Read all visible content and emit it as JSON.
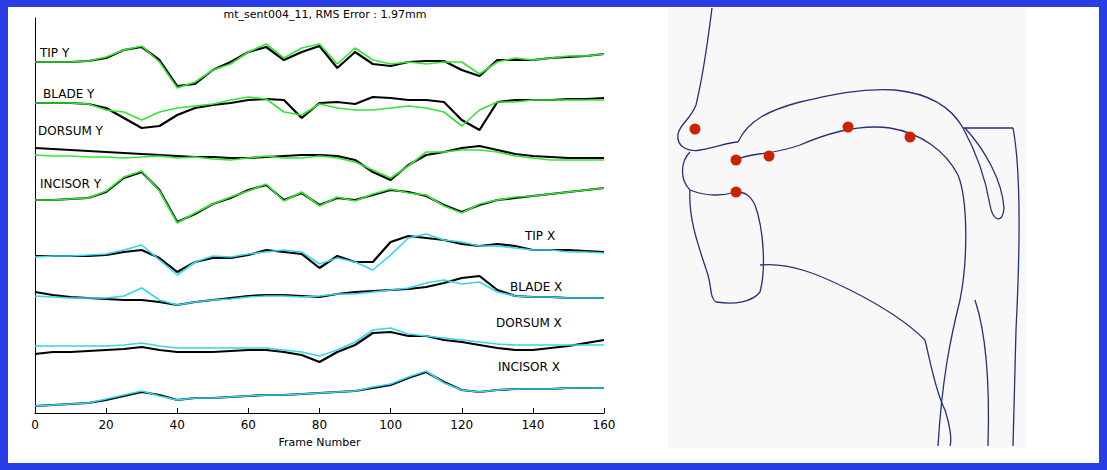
{
  "chart_data": {
    "type": "line",
    "title": "mt_sent004_11, RMS Error : 1.97mm",
    "x_label": "Frame Number",
    "x": [
      0,
      5,
      10,
      15,
      20,
      25,
      30,
      35,
      40,
      45,
      50,
      55,
      60,
      65,
      70,
      75,
      80,
      85,
      90,
      95,
      100,
      105,
      110,
      115,
      120,
      125,
      130,
      135,
      140,
      145,
      150,
      155,
      160
    ],
    "xlim": [
      0,
      160
    ],
    "xticks": [
      0,
      20,
      40,
      60,
      80,
      100,
      120,
      140,
      160
    ],
    "ylim": [
      0,
      395
    ],
    "tick_labels": "x",
    "grid": false,
    "series": [
      {
        "name": "TIP Y",
        "color": "#000000",
        "values": [
          351,
          351,
          351,
          352,
          355,
          363,
          366,
          353,
          327,
          329,
          343,
          351,
          361,
          366,
          353,
          361,
          367,
          345,
          361,
          349,
          347,
          351,
          352,
          352,
          343,
          337,
          353,
          353,
          353,
          355,
          356,
          357,
          359
        ]
      },
      {
        "color": "#33e633",
        "values": [
          351,
          351,
          351,
          352,
          356,
          363,
          367,
          351,
          325,
          331,
          343,
          349,
          361,
          369,
          355,
          365,
          369,
          349,
          365,
          353,
          349,
          351,
          349,
          351,
          351,
          339,
          351,
          355,
          353,
          355,
          357,
          357,
          359
        ]
      },
      {
        "name": "BLADE Y",
        "color": "#000000",
        "values": [
          310,
          310,
          310,
          309,
          305,
          295,
          285,
          287,
          298,
          305,
          308,
          310,
          313,
          314,
          313,
          295,
          310,
          311,
          309,
          316,
          315,
          313,
          313,
          311,
          293,
          283,
          311,
          313,
          313,
          313,
          314,
          314,
          315
        ]
      },
      {
        "color": "#33e633",
        "values": [
          310,
          310,
          310,
          309,
          303,
          301,
          293,
          301,
          305,
          307,
          309,
          313,
          316,
          314,
          301,
          298,
          309,
          305,
          303,
          303,
          305,
          307,
          305,
          301,
          287,
          303,
          311,
          311,
          313,
          313,
          313,
          313,
          313
        ]
      },
      {
        "name": "DORSUM Y",
        "color": "#000000",
        "values": [
          265,
          264,
          263,
          262,
          261,
          260,
          259,
          258,
          257,
          256,
          256,
          255,
          255,
          256,
          257,
          258,
          258,
          257,
          253,
          241,
          233,
          248,
          258,
          261,
          265,
          267,
          263,
          259,
          257,
          256,
          255,
          255,
          255
        ]
      },
      {
        "color": "#33e633",
        "values": [
          258,
          257,
          257,
          256,
          256,
          255,
          256,
          257,
          255,
          256,
          254,
          253,
          255,
          257,
          255,
          255,
          257,
          255,
          251,
          243,
          235,
          247,
          261,
          261,
          263,
          263,
          261,
          257,
          255,
          253,
          253,
          253,
          253
        ]
      },
      {
        "name": "INCISOR Y",
        "color": "#000000",
        "values": [
          213,
          213,
          214,
          215,
          221,
          235,
          241,
          223,
          191,
          199,
          209,
          215,
          223,
          228,
          213,
          220,
          208,
          215,
          213,
          218,
          223,
          221,
          217,
          208,
          201,
          208,
          213,
          215,
          217,
          219,
          221,
          223,
          225
        ]
      },
      {
        "color": "#33e633",
        "values": [
          213,
          213,
          214,
          215,
          222,
          236,
          242,
          222,
          190,
          200,
          209,
          216,
          222,
          229,
          212,
          221,
          207,
          216,
          212,
          219,
          224,
          220,
          218,
          207,
          200,
          209,
          213,
          216,
          217,
          219,
          221,
          223,
          225
        ]
      },
      {
        "name": "TIP X",
        "color": "#000000",
        "values": [
          157,
          157,
          157,
          157,
          158,
          161,
          163,
          155,
          141,
          151,
          155,
          155,
          158,
          163,
          161,
          159,
          145,
          157,
          151,
          151,
          171,
          177,
          175,
          173,
          169,
          167,
          169,
          167,
          163,
          163,
          163,
          162,
          161
        ]
      },
      {
        "color": "#33d6ea",
        "values": [
          156,
          157,
          157,
          158,
          159,
          163,
          168,
          153,
          138,
          151,
          157,
          156,
          159,
          161,
          163,
          161,
          149,
          155,
          151,
          143,
          158,
          175,
          179,
          173,
          171,
          167,
          167,
          165,
          163,
          163,
          161,
          161,
          160
        ]
      },
      {
        "name": "BLADE X",
        "color": "#000000",
        "values": [
          121,
          118,
          116,
          115,
          114,
          113,
          113,
          111,
          108,
          111,
          113,
          115,
          117,
          118,
          118,
          117,
          116,
          119,
          121,
          122,
          123,
          124,
          126,
          130,
          135,
          137,
          123,
          117,
          116,
          116,
          115,
          115,
          115
        ]
      },
      {
        "color": "#33d6ea",
        "values": [
          117,
          116,
          115,
          115,
          115,
          117,
          125,
          113,
          108,
          111,
          113,
          114,
          116,
          117,
          117,
          116,
          117,
          119,
          119,
          121,
          123,
          125,
          130,
          133,
          129,
          131,
          121,
          117,
          116,
          116,
          115,
          115,
          115
        ]
      },
      {
        "name": "DORSUM X",
        "color": "#000000",
        "values": [
          59,
          61,
          61,
          62,
          63,
          64,
          66,
          63,
          61,
          61,
          61,
          62,
          63,
          63,
          61,
          58,
          51,
          61,
          68,
          80,
          81,
          77,
          77,
          73,
          71,
          68,
          65,
          63,
          63,
          65,
          67,
          70,
          73
        ]
      },
      {
        "color": "#33d6ea",
        "values": [
          67,
          67,
          67,
          67,
          67,
          68,
          70,
          67,
          65,
          65,
          65,
          65,
          65,
          65,
          63,
          61,
          57,
          63,
          71,
          83,
          85,
          79,
          77,
          75,
          73,
          71,
          69,
          68,
          68,
          68,
          68,
          68,
          68
        ]
      },
      {
        "name": "INCISOR X",
        "color": "#000000",
        "values": [
          7,
          8,
          9,
          10,
          13,
          17,
          21,
          18,
          13,
          15,
          15,
          16,
          17,
          18,
          18,
          19,
          20,
          21,
          22,
          25,
          28,
          35,
          41,
          31,
          23,
          21,
          23,
          24,
          24,
          24,
          25,
          25,
          25
        ]
      },
      {
        "color": "#33d6ea",
        "values": [
          7,
          8,
          9,
          10,
          14,
          18,
          22,
          17,
          13,
          15,
          15,
          16,
          17,
          18,
          18,
          19,
          20,
          21,
          22,
          26,
          29,
          36,
          42,
          30,
          23,
          21,
          23,
          24,
          24,
          24,
          25,
          25,
          25
        ]
      }
    ]
  }
}
